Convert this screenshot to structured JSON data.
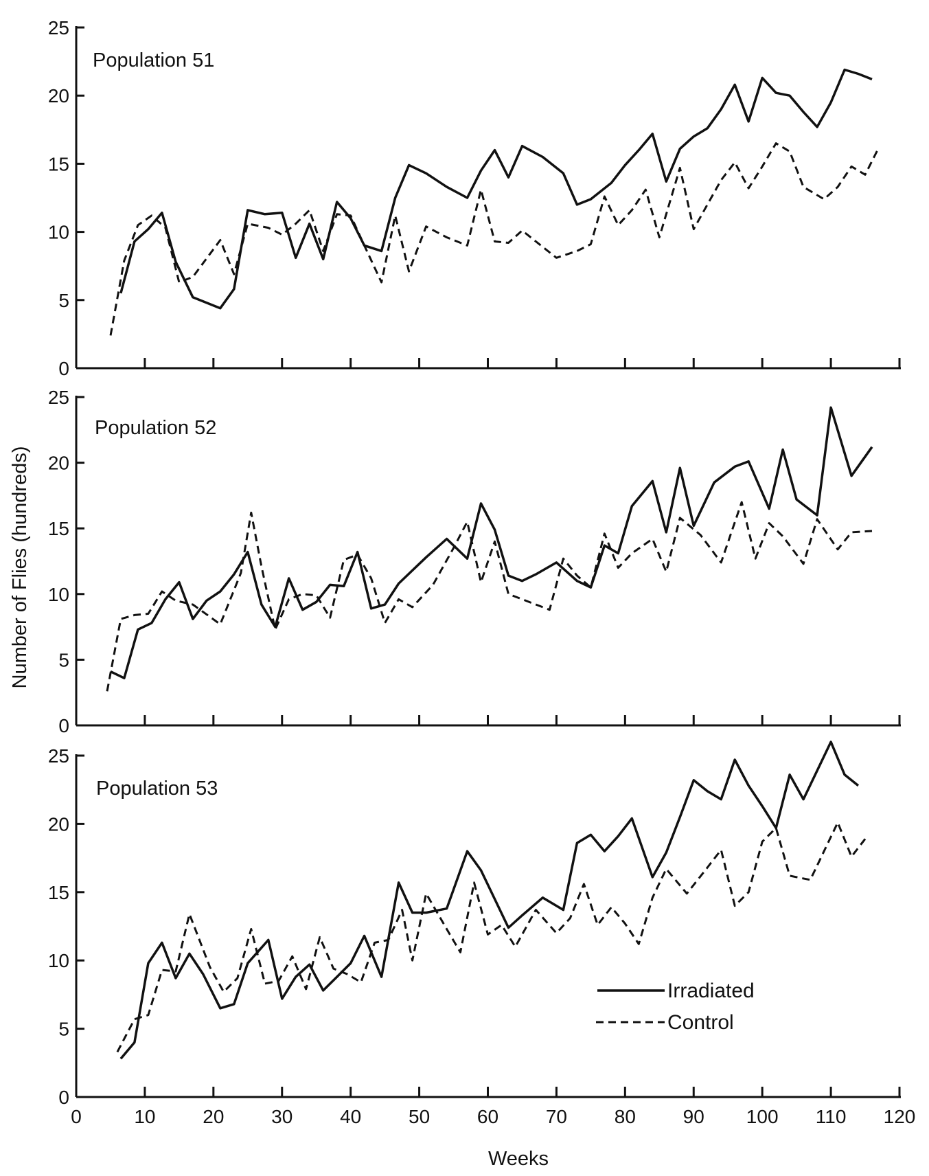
{
  "figure": {
    "ylabel": "Number of Flies (hundreds)",
    "xlabel": "Weeks",
    "legend": {
      "irradiated_label": "Irradiated",
      "control_label": "Control"
    }
  },
  "chart_data": [
    {
      "type": "line",
      "title": "Population 51",
      "xlabel": "Weeks",
      "ylabel": "Number of Flies (hundreds)",
      "xlim": [
        0,
        120
      ],
      "ylim": [
        0,
        25
      ],
      "yticks": [
        0,
        5,
        10,
        15,
        20,
        25
      ],
      "xticks": [
        0,
        10,
        20,
        30,
        40,
        50,
        60,
        70,
        80,
        90,
        100,
        110,
        120
      ],
      "x_tick_labels_shown": false,
      "grid": false,
      "series": [
        {
          "name": "Irradiated",
          "style": "solid",
          "color": "#111111",
          "x": [
            6.5,
            8.5,
            10.5,
            12.5,
            14.5,
            17,
            21,
            23,
            25,
            27.5,
            30,
            32,
            34,
            36,
            38,
            40,
            42,
            44.5,
            46.5,
            48.5,
            51,
            54,
            57,
            59,
            61,
            63,
            65,
            68,
            71,
            73,
            75,
            78,
            80,
            82,
            84,
            86,
            88,
            90,
            92,
            94,
            96,
            98,
            100,
            102,
            104,
            106,
            108,
            110,
            112,
            114,
            116
          ],
          "values": [
            5.5,
            9.3,
            10.2,
            11.4,
            7.8,
            5.2,
            4.4,
            5.8,
            11.6,
            11.3,
            11.4,
            8.1,
            10.6,
            8.0,
            12.2,
            11.0,
            9.0,
            8.6,
            12.5,
            14.9,
            14.3,
            13.3,
            12.5,
            14.5,
            16.0,
            14.0,
            16.3,
            15.5,
            14.3,
            12.0,
            12.4,
            13.6,
            14.9,
            16.0,
            17.2,
            13.7,
            16.1,
            17.0,
            17.6,
            19.0,
            20.8,
            18.1,
            21.3,
            20.2,
            20.0,
            18.8,
            17.7,
            19.5,
            21.9,
            21.6,
            21.2
          ]
        },
        {
          "name": "Control",
          "style": "dashed",
          "color": "#111111",
          "x": [
            5,
            7,
            9,
            11,
            13,
            15,
            17,
            21,
            23,
            25,
            28,
            30,
            32,
            34,
            36,
            38,
            40,
            42,
            44.5,
            46.5,
            48.5,
            51,
            54,
            57,
            59,
            61,
            63,
            65,
            67,
            70,
            73,
            75,
            77,
            79,
            81,
            83,
            85,
            88,
            90,
            92,
            94,
            96,
            98,
            100,
            102,
            104,
            106,
            109,
            111,
            113,
            115,
            117
          ],
          "values": [
            2.4,
            7.9,
            10.5,
            11.2,
            10.3,
            6.3,
            6.7,
            9.4,
            6.9,
            10.6,
            10.3,
            9.8,
            10.6,
            11.6,
            8.6,
            11.3,
            11.2,
            9.0,
            6.3,
            11.2,
            7.1,
            10.4,
            9.6,
            9.0,
            13.1,
            9.3,
            9.2,
            10.1,
            9.3,
            8.1,
            8.6,
            9.1,
            12.6,
            10.5,
            11.6,
            13.1,
            9.6,
            14.7,
            10.2,
            12.0,
            13.8,
            15.1,
            13.2,
            14.8,
            16.5,
            15.9,
            13.3,
            12.4,
            13.3,
            14.8,
            14.2,
            16.2
          ]
        }
      ]
    },
    {
      "type": "line",
      "title": "Population 52",
      "xlabel": "Weeks",
      "ylabel": "Number of Flies (hundreds)",
      "xlim": [
        0,
        120
      ],
      "ylim": [
        0,
        25
      ],
      "yticks": [
        0,
        5,
        10,
        15,
        20,
        25
      ],
      "xticks": [
        0,
        10,
        20,
        30,
        40,
        50,
        60,
        70,
        80,
        90,
        100,
        110,
        120
      ],
      "x_tick_labels_shown": false,
      "grid": false,
      "series": [
        {
          "name": "Irradiated",
          "style": "solid",
          "color": "#111111",
          "x": [
            5,
            7,
            9,
            11,
            13,
            15,
            17,
            19,
            21,
            23,
            25,
            27,
            29,
            31,
            33,
            35,
            37,
            39,
            41,
            43,
            45,
            47,
            49,
            51,
            54,
            57,
            59,
            61,
            63,
            65,
            67,
            70,
            73,
            75,
            77,
            79,
            81,
            84,
            86,
            88,
            90,
            93,
            96,
            98,
            101,
            103,
            105,
            108,
            110,
            113,
            116
          ],
          "values": [
            4.1,
            3.6,
            7.3,
            7.8,
            9.6,
            10.9,
            8.1,
            9.5,
            10.2,
            11.5,
            13.2,
            9.2,
            7.5,
            11.2,
            8.8,
            9.4,
            10.7,
            10.6,
            13.2,
            8.9,
            9.2,
            10.8,
            11.8,
            12.8,
            14.2,
            12.7,
            16.9,
            14.9,
            11.4,
            11.0,
            11.5,
            12.4,
            11.0,
            10.5,
            13.7,
            13.1,
            16.7,
            18.6,
            14.7,
            19.6,
            15.2,
            18.5,
            19.7,
            20.1,
            16.5,
            21.0,
            17.2,
            16.0,
            24.2,
            19.0,
            21.2
          ]
        },
        {
          "name": "Control",
          "style": "dashed",
          "color": "#111111",
          "x": [
            4.5,
            6.5,
            8.5,
            10.5,
            12.5,
            14.5,
            17,
            21,
            24,
            25.5,
            27,
            29,
            31,
            33,
            35,
            37,
            39,
            41,
            43,
            45,
            47,
            49,
            52,
            55,
            57,
            59,
            61,
            63,
            65,
            69,
            71,
            73,
            75,
            77,
            79,
            81,
            84,
            86,
            88,
            91,
            94,
            97,
            99,
            101,
            103,
            106,
            108,
            111,
            113,
            116
          ],
          "values": [
            2.6,
            8.1,
            8.4,
            8.5,
            10.2,
            9.5,
            9.2,
            7.7,
            11.6,
            16.2,
            12.1,
            7.3,
            9.6,
            10.0,
            9.9,
            8.2,
            12.6,
            13.0,
            11.2,
            7.8,
            9.6,
            9.0,
            10.7,
            13.5,
            15.5,
            10.9,
            14.0,
            10.0,
            9.6,
            8.8,
            12.7,
            11.4,
            10.5,
            14.6,
            12.0,
            13.1,
            14.2,
            11.7,
            15.8,
            14.5,
            12.4,
            17.0,
            12.7,
            15.4,
            14.4,
            12.3,
            15.7,
            13.4,
            14.7,
            14.8
          ]
        }
      ]
    },
    {
      "type": "line",
      "title": "Population 53",
      "xlabel": "Weeks",
      "ylabel": "Number of Flies (hundreds)",
      "xlim": [
        0,
        120
      ],
      "ylim": [
        0,
        25
      ],
      "yticks": [
        0,
        5,
        10,
        15,
        20,
        25
      ],
      "xticks": [
        0,
        10,
        20,
        30,
        40,
        50,
        60,
        70,
        80,
        90,
        100,
        110,
        120
      ],
      "xtick_labels": [
        "0",
        "10",
        "20",
        "30",
        "40",
        "50",
        "60",
        "70",
        "80",
        "90",
        "100",
        "110",
        "120"
      ],
      "grid": false,
      "legend_position": "bottom-right",
      "series": [
        {
          "name": "Irradiated",
          "style": "solid",
          "color": "#111111",
          "x": [
            6.5,
            8.5,
            10.5,
            12.5,
            14.5,
            16.5,
            18.5,
            21,
            23,
            25,
            28,
            30,
            32,
            34,
            36,
            38,
            40,
            42,
            44.5,
            47,
            49,
            51,
            54,
            57,
            59,
            61,
            63,
            65,
            68,
            71,
            73,
            75,
            77,
            79,
            81,
            84,
            86,
            88,
            90,
            92,
            94,
            96,
            98,
            100,
            102,
            104,
            106,
            108,
            110,
            112,
            114
          ],
          "values": [
            2.8,
            4.0,
            9.8,
            11.3,
            8.7,
            10.5,
            9.0,
            6.5,
            6.8,
            9.8,
            11.5,
            7.2,
            8.8,
            9.7,
            7.8,
            8.8,
            9.8,
            11.8,
            8.8,
            15.7,
            13.5,
            13.5,
            13.8,
            18.0,
            16.6,
            14.5,
            12.4,
            13.3,
            14.6,
            13.7,
            18.6,
            19.2,
            18.0,
            19.1,
            20.4,
            16.1,
            17.9,
            20.5,
            23.2,
            22.4,
            21.8,
            24.7,
            22.8,
            21.3,
            19.7,
            23.6,
            21.8,
            23.9,
            26.0,
            23.6,
            22.8
          ]
        },
        {
          "name": "Control",
          "style": "dashed",
          "color": "#111111",
          "x": [
            6,
            8.5,
            10.5,
            12.5,
            14.5,
            16.5,
            19.5,
            21.5,
            23.5,
            25.5,
            27.5,
            29.5,
            31.5,
            33.5,
            35.5,
            37.5,
            39.5,
            41.5,
            43.5,
            45.5,
            47.5,
            49,
            51,
            54,
            56,
            58,
            60,
            62,
            64,
            67,
            70,
            72,
            74,
            76,
            78,
            80,
            82,
            84,
            86,
            89,
            92,
            94,
            96,
            98,
            100,
            102,
            104,
            107,
            109,
            111,
            113,
            115
          ],
          "values": [
            3.3,
            5.7,
            6.0,
            9.3,
            9.2,
            13.4,
            9.5,
            7.7,
            8.7,
            12.3,
            8.3,
            8.5,
            10.3,
            7.9,
            11.7,
            9.4,
            9.0,
            8.4,
            11.3,
            11.5,
            13.7,
            10.0,
            14.9,
            12.3,
            10.6,
            15.7,
            11.9,
            12.6,
            11.0,
            13.7,
            12.0,
            13.1,
            15.6,
            12.6,
            13.9,
            12.7,
            11.2,
            14.6,
            16.7,
            14.9,
            16.8,
            18.1,
            14.0,
            15.0,
            18.7,
            19.7,
            16.2,
            15.9,
            18.0,
            20.1,
            17.6,
            18.9
          ]
        }
      ]
    }
  ]
}
